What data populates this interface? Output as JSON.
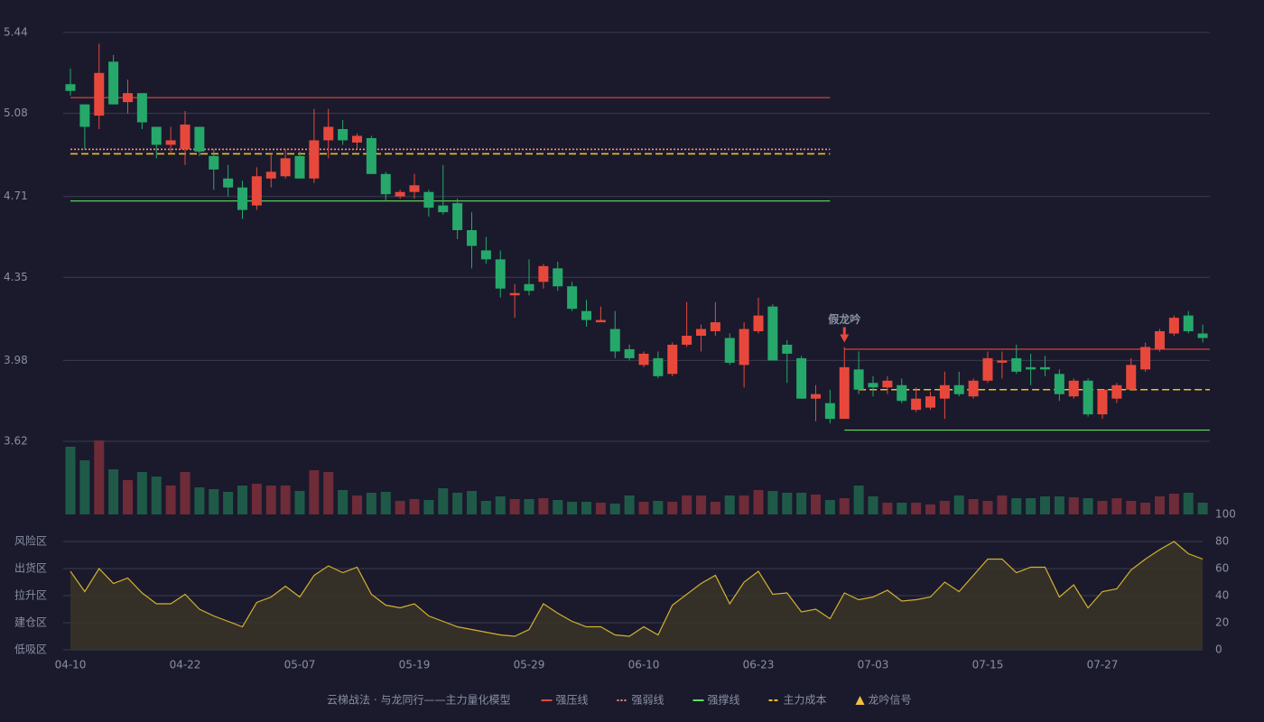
{
  "chart_data": [
    {
      "type": "candlestick",
      "categories": [
        "04-10",
        null,
        null,
        null,
        null,
        null,
        null,
        null,
        "04-22",
        null,
        null,
        null,
        null,
        null,
        null,
        null,
        "05-07",
        null,
        null,
        null,
        null,
        null,
        null,
        null,
        "05-19",
        null,
        null,
        null,
        null,
        null,
        null,
        null,
        "05-29",
        null,
        null,
        null,
        null,
        null,
        null,
        null,
        "06-10",
        null,
        null,
        null,
        null,
        null,
        null,
        null,
        "06-23",
        null,
        null,
        null,
        null,
        null,
        null,
        null,
        "07-03",
        null,
        null,
        null,
        null,
        null,
        null,
        null,
        "07-15",
        null,
        null,
        null,
        null,
        null,
        null,
        null,
        "07-27",
        null,
        null,
        null,
        null,
        null,
        null,
        null
      ],
      "open": [
        5.21,
        5.12,
        5.07,
        5.31,
        5.13,
        5.17,
        5.02,
        4.94,
        4.92,
        5.02,
        4.89,
        4.79,
        4.75,
        4.67,
        4.79,
        4.8,
        4.89,
        4.79,
        4.96,
        5.01,
        4.95,
        4.97,
        4.81,
        4.71,
        4.73,
        4.73,
        4.67,
        4.68,
        4.56,
        4.47,
        4.43,
        4.27,
        4.32,
        4.33,
        4.39,
        4.31,
        4.2,
        4.15,
        4.12,
        4.03,
        3.96,
        3.99,
        3.92,
        4.05,
        4.09,
        4.11,
        4.08,
        3.96,
        4.11,
        4.22,
        4.05,
        3.99,
        3.81,
        3.79,
        3.72,
        3.94,
        3.88,
        3.86,
        3.87,
        3.76,
        3.77,
        3.81,
        3.87,
        3.82,
        3.89,
        3.97,
        3.99,
        3.95,
        3.95,
        3.92,
        3.82,
        3.89,
        3.74,
        3.81,
        3.85,
        3.94,
        4.03,
        4.1,
        4.18,
        4.1
      ],
      "high": [
        5.28,
        5.12,
        5.39,
        5.34,
        5.23,
        5.17,
        5.02,
        5.02,
        5.09,
        5.02,
        4.92,
        4.85,
        4.78,
        4.84,
        4.9,
        4.92,
        4.91,
        5.1,
        5.1,
        5.05,
        4.99,
        4.98,
        4.82,
        4.74,
        4.81,
        4.74,
        4.85,
        4.7,
        4.64,
        4.53,
        4.47,
        4.32,
        4.43,
        4.41,
        4.42,
        4.33,
        4.25,
        4.22,
        4.2,
        4.05,
        4.02,
        4.02,
        4.06,
        4.24,
        4.14,
        4.24,
        4.1,
        4.15,
        4.26,
        4.23,
        4.07,
        4.0,
        3.87,
        3.85,
        4.04,
        4.02,
        3.91,
        3.91,
        3.9,
        3.86,
        3.84,
        3.93,
        3.93,
        3.9,
        4.02,
        4.02,
        4.05,
        4.01,
        4.0,
        3.94,
        3.9,
        3.9,
        3.85,
        3.88,
        3.99,
        4.06,
        4.12,
        4.18,
        4.2,
        4.14
      ],
      "low": [
        5.16,
        4.92,
        5.01,
        5.12,
        5.08,
        5.01,
        4.88,
        4.9,
        4.85,
        4.89,
        4.74,
        4.71,
        4.61,
        4.65,
        4.75,
        4.79,
        4.79,
        4.77,
        4.88,
        4.94,
        4.92,
        4.81,
        4.69,
        4.7,
        4.7,
        4.62,
        4.63,
        4.52,
        4.39,
        4.41,
        4.26,
        4.17,
        4.27,
        4.3,
        4.29,
        4.2,
        4.13,
        4.15,
        3.99,
        3.98,
        3.95,
        3.9,
        3.91,
        4.04,
        4.02,
        4.09,
        3.96,
        3.86,
        4.1,
        3.98,
        3.88,
        3.81,
        3.71,
        3.7,
        3.72,
        3.83,
        3.82,
        3.83,
        3.79,
        3.75,
        3.76,
        3.72,
        3.82,
        3.81,
        3.88,
        3.9,
        3.92,
        3.87,
        3.91,
        3.8,
        3.81,
        3.73,
        3.72,
        3.79,
        3.85,
        3.93,
        4.02,
        4.09,
        4.1,
        4.06
      ],
      "close": [
        5.18,
        5.02,
        5.26,
        5.12,
        5.17,
        5.04,
        4.94,
        4.96,
        5.03,
        4.91,
        4.83,
        4.75,
        4.65,
        4.8,
        4.82,
        4.88,
        4.79,
        4.96,
        5.02,
        4.96,
        4.98,
        4.81,
        4.72,
        4.73,
        4.76,
        4.66,
        4.64,
        4.56,
        4.49,
        4.43,
        4.3,
        4.28,
        4.29,
        4.4,
        4.31,
        4.21,
        4.16,
        4.16,
        4.02,
        3.99,
        4.01,
        3.91,
        4.05,
        4.09,
        4.12,
        4.15,
        3.97,
        4.12,
        4.18,
        3.98,
        4.01,
        3.81,
        3.83,
        3.72,
        3.95,
        3.85,
        3.86,
        3.89,
        3.8,
        3.81,
        3.82,
        3.87,
        3.83,
        3.89,
        3.99,
        3.98,
        3.93,
        3.94,
        3.94,
        3.83,
        3.89,
        3.74,
        3.85,
        3.87,
        3.96,
        4.04,
        4.11,
        4.17,
        4.11,
        4.08
      ],
      "up_color": "#e8483c",
      "down_color": "#26a86a",
      "ylim": [
        3.62,
        5.44
      ],
      "yticks": [
        5.44,
        5.08,
        4.71,
        4.35,
        3.98,
        3.62
      ],
      "grid": true,
      "levels": [
        {
          "name": "强压线",
          "color": "#e8483c",
          "style": "solid",
          "segments": [
            {
              "start": 0,
              "end": 53,
              "value": 5.15
            },
            {
              "start": 54,
              "end": 79,
              "value": 4.03
            }
          ]
        },
        {
          "name": "强弱线",
          "color": "#ff8a8a",
          "style": "dotted",
          "segments": [
            {
              "start": 0,
              "end": 53,
              "value": 4.92
            }
          ]
        },
        {
          "name": "强撑线",
          "color": "#5ee05e",
          "style": "solid",
          "segments": [
            {
              "start": 0,
              "end": 53,
              "value": 4.69
            },
            {
              "start": 54,
              "end": 79,
              "value": 3.67
            }
          ]
        },
        {
          "name": "主力成本",
          "color": "#f0c020",
          "style": "dashed",
          "segments": [
            {
              "start": 0,
              "end": 53,
              "value": 4.9
            },
            {
              "start": 55,
              "end": 79,
              "value": 3.85
            }
          ]
        }
      ],
      "signals": {
        "name": "龙吟信号",
        "color": "#f0c040",
        "points": [
          {
            "index": 54,
            "label": "假龙吟"
          }
        ]
      },
      "legend_title": "云梯战法 · 与龙同行——主力量化模型"
    },
    {
      "type": "volume",
      "values": [
        75,
        60,
        82,
        50,
        38,
        47,
        42,
        32,
        47,
        30,
        28,
        25,
        32,
        34,
        32,
        32,
        26,
        49,
        47,
        27,
        21,
        24,
        25,
        15,
        17,
        16,
        29,
        24,
        26,
        15,
        20,
        17,
        17,
        18,
        16,
        14,
        14,
        13,
        12,
        21,
        14,
        15,
        14,
        21,
        21,
        14,
        21,
        21,
        27,
        26,
        24,
        24,
        22,
        16,
        18,
        32,
        20,
        13,
        13,
        13,
        11,
        15,
        21,
        17,
        15,
        21,
        18,
        18,
        20,
        20,
        19,
        18,
        15,
        18,
        15,
        13,
        20,
        23,
        24,
        13
      ],
      "up_color": "#6e2b38",
      "down_color": "#1f5a48"
    },
    {
      "type": "line",
      "values": [
        58,
        43,
        60,
        49,
        53,
        42,
        34,
        34,
        41,
        30,
        25,
        21,
        17,
        35,
        39,
        47,
        39,
        55,
        62,
        57,
        61,
        41,
        33,
        31,
        34,
        25,
        21,
        17,
        15,
        13,
        11,
        10,
        15,
        34,
        27,
        21,
        17,
        17,
        11,
        10,
        17,
        11,
        33,
        41,
        49,
        55,
        34,
        50,
        58,
        41,
        42,
        28,
        30,
        23,
        42,
        37,
        39,
        44,
        36,
        37,
        39,
        50,
        43,
        55,
        67,
        67,
        57,
        61,
        61,
        39,
        48,
        31,
        43,
        45,
        59,
        67,
        74,
        80,
        71,
        67
      ],
      "color": "#d4b030",
      "ylim": [
        0,
        100
      ],
      "yticks": [
        0,
        20,
        40,
        60,
        80,
        100
      ],
      "ytick_colors": [
        "#ff4d4d",
        "#ff4d4d",
        "#4aa0ff",
        "#e040e0",
        "#f0a030",
        "#3ee05e"
      ],
      "zones": [
        {
          "label": "风险区",
          "value": 80,
          "color": "#f0a030"
        },
        {
          "label": "出货区",
          "value": 60,
          "color": "#e040e0"
        },
        {
          "label": "拉升区",
          "value": 40,
          "color": "#4aa0ff"
        },
        {
          "label": "建仓区",
          "value": 20,
          "color": "#ff5a5a"
        },
        {
          "label": "低吸区",
          "value": 0,
          "color": "#ff5a78"
        }
      ]
    }
  ]
}
